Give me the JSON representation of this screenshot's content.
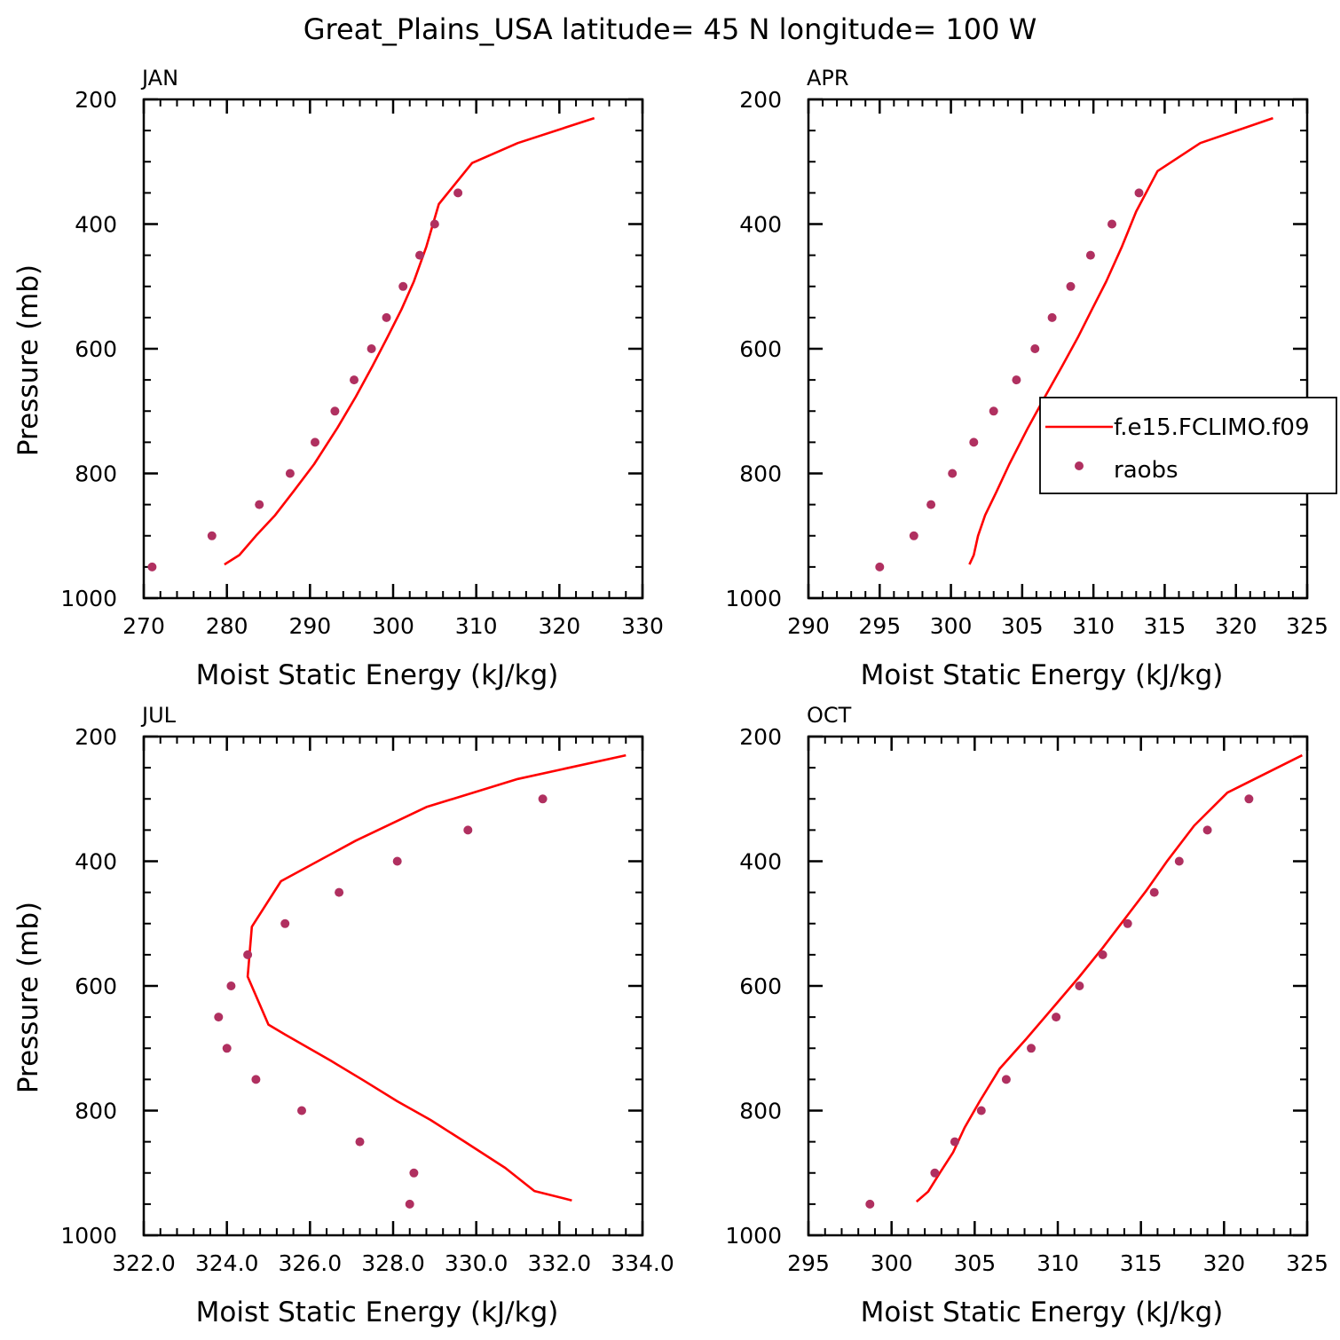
{
  "figure_title": "Great_Plains_USA  latitude= 45 N longitude= 100 W",
  "colors": {
    "model": "#ff0000",
    "obs": "#b03060",
    "axes": "#000000",
    "background": "#ffffff"
  },
  "legend": {
    "panel": "APR",
    "entries": [
      {
        "label": "f.e15.FCLIMO.f09",
        "kind": "line",
        "color": "#ff0000"
      },
      {
        "label": "raobs",
        "kind": "marker",
        "color": "#b03060"
      }
    ]
  },
  "chart_data": [
    {
      "type": "line",
      "panel": "JAN",
      "title": "JAN",
      "xlabel": "Moist Static Energy (kJ/kg)",
      "ylabel": "Pressure (mb)",
      "xlim": [
        270,
        330
      ],
      "ylim": [
        1000,
        200
      ],
      "x_ticks": [
        270,
        280,
        290,
        300,
        310,
        320,
        330
      ],
      "x_tick_labels": [
        "270",
        "280",
        "290",
        "300",
        "310",
        "320",
        "330"
      ],
      "x_minor_step": 2,
      "y_ticks": [
        200,
        400,
        600,
        800,
        1000
      ],
      "y_tick_labels": [
        "200",
        "400",
        "600",
        "800",
        "1000"
      ],
      "y_minor_step": 50,
      "series": [
        {
          "name": "f.e15.FCLIMO.f09",
          "kind": "line",
          "points": [
            [
              279.7,
              946
            ],
            [
              281.5,
              931
            ],
            [
              283.5,
              900
            ],
            [
              285.8,
              867
            ],
            [
              288.0,
              829
            ],
            [
              290.5,
              785
            ],
            [
              293.3,
              727
            ],
            [
              295.5,
              677
            ],
            [
              297.5,
              628
            ],
            [
              299.3,
              582
            ],
            [
              301.0,
              537
            ],
            [
              302.5,
              492
            ],
            [
              304.0,
              436
            ],
            [
              305.5,
              368
            ],
            [
              309.5,
              302
            ],
            [
              315.0,
              270
            ],
            [
              324.2,
              230
            ]
          ]
        },
        {
          "name": "raobs",
          "kind": "marker",
          "points": [
            [
              271.0,
              950
            ],
            [
              278.2,
              900
            ],
            [
              283.9,
              850
            ],
            [
              287.6,
              800
            ],
            [
              290.6,
              750
            ],
            [
              293.0,
              700
            ],
            [
              295.3,
              650
            ],
            [
              297.4,
              600
            ],
            [
              299.2,
              550
            ],
            [
              301.2,
              500
            ],
            [
              303.2,
              450
            ],
            [
              305.0,
              400
            ],
            [
              307.8,
              350
            ]
          ]
        }
      ]
    },
    {
      "type": "line",
      "panel": "APR",
      "title": "APR",
      "xlabel": "Moist Static Energy (kJ/kg)",
      "ylabel": "",
      "xlim": [
        290,
        325
      ],
      "ylim": [
        1000,
        200
      ],
      "x_ticks": [
        290,
        295,
        300,
        305,
        310,
        315,
        320,
        325
      ],
      "x_tick_labels": [
        "290",
        "295",
        "300",
        "305",
        "310",
        "315",
        "320",
        "325"
      ],
      "x_minor_step": 1,
      "y_ticks": [
        200,
        400,
        600,
        800,
        1000
      ],
      "y_tick_labels": [
        "200",
        "400",
        "600",
        "800",
        "1000"
      ],
      "y_minor_step": 50,
      "series": [
        {
          "name": "f.e15.FCLIMO.f09",
          "kind": "line",
          "points": [
            [
              301.3,
              946
            ],
            [
              301.6,
              931
            ],
            [
              301.9,
              900
            ],
            [
              302.4,
              867
            ],
            [
              303.2,
              829
            ],
            [
              304.1,
              785
            ],
            [
              305.4,
              727
            ],
            [
              306.6,
              677
            ],
            [
              307.8,
              628
            ],
            [
              308.9,
              582
            ],
            [
              309.9,
              537
            ],
            [
              310.9,
              492
            ],
            [
              312.0,
              436
            ],
            [
              313.0,
              380
            ],
            [
              314.5,
              315
            ],
            [
              317.5,
              270
            ],
            [
              322.6,
              230
            ]
          ]
        },
        {
          "name": "raobs",
          "kind": "marker",
          "points": [
            [
              295.0,
              950
            ],
            [
              297.4,
              900
            ],
            [
              298.6,
              850
            ],
            [
              300.1,
              800
            ],
            [
              301.6,
              750
            ],
            [
              303.0,
              700
            ],
            [
              304.6,
              650
            ],
            [
              305.9,
              600
            ],
            [
              307.1,
              550
            ],
            [
              308.4,
              500
            ],
            [
              309.8,
              450
            ],
            [
              311.3,
              400
            ],
            [
              313.2,
              350
            ]
          ]
        }
      ]
    },
    {
      "type": "line",
      "panel": "JUL",
      "title": "JUL",
      "xlabel": "Moist Static Energy (kJ/kg)",
      "ylabel": "Pressure (mb)",
      "xlim": [
        322,
        334
      ],
      "ylim": [
        1000,
        200
      ],
      "x_ticks": [
        322,
        324,
        326,
        328,
        330,
        332,
        334
      ],
      "x_tick_labels": [
        "322.0",
        "324.0",
        "326.0",
        "328.0",
        "330.0",
        "332.0",
        "334.0"
      ],
      "x_minor_step": 0.4,
      "y_ticks": [
        200,
        400,
        600,
        800,
        1000
      ],
      "y_tick_labels": [
        "200",
        "400",
        "600",
        "800",
        "1000"
      ],
      "y_minor_step": 50,
      "series": [
        {
          "name": "f.e15.FCLIMO.f09",
          "kind": "line",
          "points": [
            [
              332.3,
              944
            ],
            [
              331.4,
              929
            ],
            [
              330.7,
              892
            ],
            [
              329.7,
              849
            ],
            [
              328.9,
              815
            ],
            [
              328.1,
              785
            ],
            [
              327.3,
              752
            ],
            [
              326.5,
              720
            ],
            [
              325.4,
              678
            ],
            [
              325.0,
              662
            ],
            [
              324.5,
              585
            ],
            [
              324.6,
              505
            ],
            [
              325.3,
              432
            ],
            [
              327.1,
              367
            ],
            [
              328.8,
              313
            ],
            [
              331.0,
              268
            ],
            [
              333.6,
              230
            ]
          ]
        },
        {
          "name": "raobs",
          "kind": "marker",
          "points": [
            [
              328.4,
              950
            ],
            [
              328.5,
              900
            ],
            [
              327.2,
              850
            ],
            [
              325.8,
              800
            ],
            [
              324.7,
              750
            ],
            [
              324.0,
              700
            ],
            [
              323.8,
              650
            ],
            [
              324.1,
              600
            ],
            [
              324.5,
              550
            ],
            [
              325.4,
              500
            ],
            [
              326.7,
              450
            ],
            [
              328.1,
              400
            ],
            [
              329.8,
              350
            ],
            [
              331.6,
              300
            ]
          ]
        }
      ]
    },
    {
      "type": "line",
      "panel": "OCT",
      "title": "OCT",
      "xlabel": "Moist Static Energy (kJ/kg)",
      "ylabel": "",
      "xlim": [
        295,
        325
      ],
      "ylim": [
        1000,
        200
      ],
      "x_ticks": [
        295,
        300,
        305,
        310,
        315,
        320,
        325
      ],
      "x_tick_labels": [
        "295",
        "300",
        "305",
        "310",
        "315",
        "320",
        "325"
      ],
      "x_minor_step": 1,
      "y_ticks": [
        200,
        400,
        600,
        800,
        1000
      ],
      "y_tick_labels": [
        "200",
        "400",
        "600",
        "800",
        "1000"
      ],
      "y_minor_step": 50,
      "series": [
        {
          "name": "f.e15.FCLIMO.f09",
          "kind": "line",
          "points": [
            [
              301.5,
              946
            ],
            [
              302.2,
              930
            ],
            [
              302.9,
              900
            ],
            [
              303.7,
              867
            ],
            [
              304.4,
              827
            ],
            [
              305.3,
              785
            ],
            [
              306.5,
              733
            ],
            [
              308.1,
              685
            ],
            [
              309.8,
              632
            ],
            [
              311.3,
              585
            ],
            [
              312.7,
              539
            ],
            [
              313.9,
              497
            ],
            [
              315.3,
              448
            ],
            [
              316.6,
              399
            ],
            [
              318.2,
              343
            ],
            [
              320.2,
              290
            ],
            [
              324.7,
              230
            ]
          ]
        },
        {
          "name": "raobs",
          "kind": "marker",
          "points": [
            [
              298.7,
              950
            ],
            [
              302.6,
              900
            ],
            [
              303.8,
              850
            ],
            [
              305.4,
              800
            ],
            [
              306.9,
              750
            ],
            [
              308.4,
              700
            ],
            [
              309.9,
              650
            ],
            [
              311.3,
              600
            ],
            [
              312.7,
              550
            ],
            [
              314.2,
              500
            ],
            [
              315.8,
              450
            ],
            [
              317.3,
              400
            ],
            [
              319.0,
              350
            ],
            [
              321.5,
              300
            ]
          ]
        }
      ]
    }
  ]
}
